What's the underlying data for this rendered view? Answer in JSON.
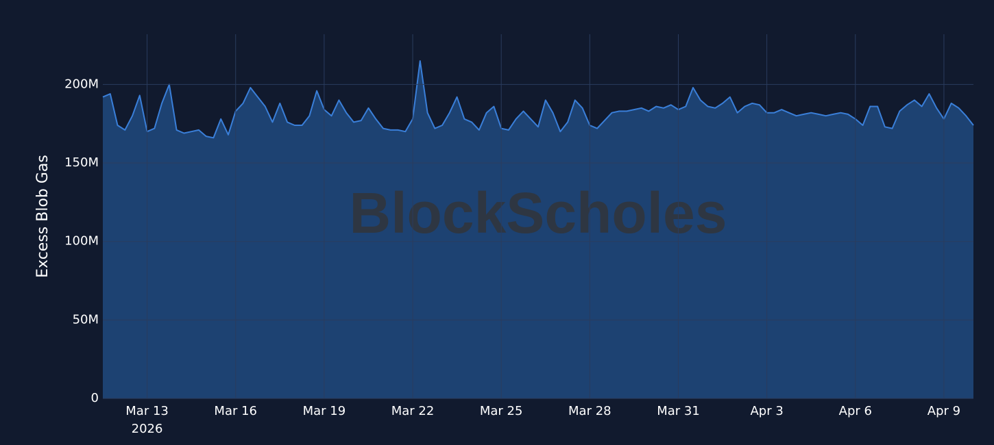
{
  "chart_data": {
    "type": "area",
    "y_label": "Excess Blob Gas",
    "watermark": "BlockScholes",
    "x_year_label": "2026",
    "line_color": "#3a7fd9",
    "fill_color": "#1e4578",
    "grid": true,
    "x": [
      "2026-03-11T12:00",
      "2026-03-11T18:00",
      "2026-03-12T00:00",
      "2026-03-12T06:00",
      "2026-03-12T12:00",
      "2026-03-12T18:00",
      "2026-03-13T00:00",
      "2026-03-13T06:00",
      "2026-03-13T12:00",
      "2026-03-13T18:00",
      "2026-03-14T00:00",
      "2026-03-14T06:00",
      "2026-03-14T12:00",
      "2026-03-14T18:00",
      "2026-03-15T00:00",
      "2026-03-15T06:00",
      "2026-03-15T12:00",
      "2026-03-15T18:00",
      "2026-03-16T00:00",
      "2026-03-16T06:00",
      "2026-03-16T12:00",
      "2026-03-16T18:00",
      "2026-03-17T00:00",
      "2026-03-17T06:00",
      "2026-03-17T12:00",
      "2026-03-17T18:00",
      "2026-03-18T00:00",
      "2026-03-18T06:00",
      "2026-03-18T12:00",
      "2026-03-18T18:00",
      "2026-03-19T00:00",
      "2026-03-19T06:00",
      "2026-03-19T12:00",
      "2026-03-19T18:00",
      "2026-03-20T00:00",
      "2026-03-20T06:00",
      "2026-03-20T12:00",
      "2026-03-20T18:00",
      "2026-03-21T00:00",
      "2026-03-21T06:00",
      "2026-03-21T12:00",
      "2026-03-21T18:00",
      "2026-03-22T00:00",
      "2026-03-22T06:00",
      "2026-03-22T12:00",
      "2026-03-22T18:00",
      "2026-03-23T00:00",
      "2026-03-23T06:00",
      "2026-03-23T12:00",
      "2026-03-23T18:00",
      "2026-03-24T00:00",
      "2026-03-24T06:00",
      "2026-03-24T12:00",
      "2026-03-24T18:00",
      "2026-03-25T00:00",
      "2026-03-25T06:00",
      "2026-03-25T12:00",
      "2026-03-25T18:00",
      "2026-03-26T00:00",
      "2026-03-26T06:00",
      "2026-03-26T12:00",
      "2026-03-26T18:00",
      "2026-03-27T00:00",
      "2026-03-27T06:00",
      "2026-03-27T12:00",
      "2026-03-27T18:00",
      "2026-03-28T00:00",
      "2026-03-28T06:00",
      "2026-03-28T12:00",
      "2026-03-28T18:00",
      "2026-03-29T00:00",
      "2026-03-29T06:00",
      "2026-03-29T12:00",
      "2026-03-29T18:00",
      "2026-03-30T00:00",
      "2026-03-30T06:00",
      "2026-03-30T12:00",
      "2026-03-30T18:00",
      "2026-03-31T00:00",
      "2026-03-31T06:00",
      "2026-03-31T12:00",
      "2026-03-31T18:00",
      "2026-04-01T00:00",
      "2026-04-01T06:00",
      "2026-04-01T12:00",
      "2026-04-01T18:00",
      "2026-04-02T00:00",
      "2026-04-02T06:00",
      "2026-04-02T12:00",
      "2026-04-02T18:00",
      "2026-04-03T00:00",
      "2026-04-03T06:00",
      "2026-04-03T12:00",
      "2026-04-03T18:00",
      "2026-04-04T00:00",
      "2026-04-04T06:00",
      "2026-04-04T12:00",
      "2026-04-04T18:00",
      "2026-04-05T00:00",
      "2026-04-05T06:00",
      "2026-04-05T12:00",
      "2026-04-05T18:00",
      "2026-04-06T00:00",
      "2026-04-06T06:00",
      "2026-04-06T12:00",
      "2026-04-06T18:00",
      "2026-04-07T00:00",
      "2026-04-07T06:00",
      "2026-04-07T12:00",
      "2026-04-07T18:00",
      "2026-04-08T00:00",
      "2026-04-08T06:00",
      "2026-04-08T12:00",
      "2026-04-08T18:00",
      "2026-04-09T00:00",
      "2026-04-09T06:00",
      "2026-04-09T12:00",
      "2026-04-09T18:00",
      "2026-04-10T00:00"
    ],
    "values": [
      192,
      194,
      174,
      171,
      180,
      193,
      170,
      172,
      188,
      200,
      171,
      169,
      170,
      171,
      167,
      166,
      178,
      168,
      183,
      188,
      198,
      192,
      186,
      176,
      188,
      176,
      174,
      174,
      180,
      196,
      184,
      180,
      190,
      182,
      176,
      177,
      185,
      178,
      172,
      171,
      171,
      170,
      178,
      215,
      182,
      172,
      174,
      182,
      192,
      178,
      176,
      171,
      182,
      186,
      172,
      171,
      178,
      183,
      178,
      173,
      190,
      182,
      170,
      176,
      190,
      185,
      174,
      172,
      177,
      182,
      183,
      183,
      184,
      185,
      183,
      186,
      185,
      187,
      184,
      186,
      198,
      190,
      186,
      185,
      188,
      192,
      182,
      186,
      188,
      187,
      182,
      182,
      184,
      182,
      180,
      181,
      182,
      181,
      180,
      181,
      182,
      181,
      178,
      174,
      186,
      186,
      173,
      172,
      183,
      187,
      190,
      186,
      194,
      185,
      178,
      188,
      185,
      180,
      174
    ],
    "xlim": [
      "2026-03-11T12:00",
      "2026-04-10T00:00"
    ],
    "xticks": [
      {
        "value": "2026-03-13T00:00",
        "label": "Mar 13"
      },
      {
        "value": "2026-03-16T00:00",
        "label": "Mar 16"
      },
      {
        "value": "2026-03-19T00:00",
        "label": "Mar 19"
      },
      {
        "value": "2026-03-22T00:00",
        "label": "Mar 22"
      },
      {
        "value": "2026-03-25T00:00",
        "label": "Mar 25"
      },
      {
        "value": "2026-03-28T00:00",
        "label": "Mar 28"
      },
      {
        "value": "2026-03-31T00:00",
        "label": "Mar 31"
      },
      {
        "value": "2026-04-03T00:00",
        "label": "Apr 3"
      },
      {
        "value": "2026-04-06T00:00",
        "label": "Apr 6"
      },
      {
        "value": "2026-04-09T00:00",
        "label": "Apr 9"
      }
    ],
    "ylim": [
      0,
      232
    ],
    "yticks": [
      0,
      {
        "value": 50,
        "label": "50M"
      },
      {
        "value": 100,
        "label": "100M"
      },
      {
        "value": 150,
        "label": "150M"
      },
      {
        "value": 200,
        "label": "200M"
      }
    ]
  }
}
